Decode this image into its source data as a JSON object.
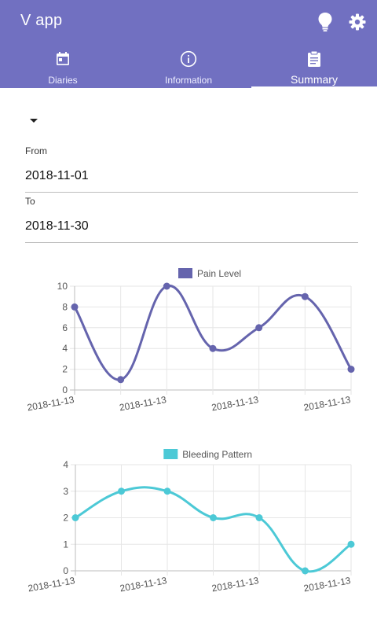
{
  "app": {
    "title": "V app"
  },
  "icons": {
    "bulb": "lightbulb-icon",
    "settings": "gear-icon"
  },
  "tabs": [
    {
      "label": "Diaries",
      "icon": "calendar-icon",
      "active": false
    },
    {
      "label": "Information",
      "icon": "info-icon",
      "active": false
    },
    {
      "label": "Summary",
      "icon": "clipboard-icon",
      "active": true
    }
  ],
  "filter": {
    "from_label": "From",
    "from_value": "2018-11-01",
    "to_label": "To",
    "to_value": "2018-11-30"
  },
  "colors": {
    "primary": "#7170c1",
    "pain": "#6564ad",
    "bleeding": "#4cc9d6"
  },
  "chart_data": [
    {
      "type": "line",
      "categories": [
        "2018-11-13",
        "",
        "2018-11-13",
        "",
        "2018-11-13",
        "",
        "2018-11-13"
      ],
      "series": [
        {
          "name": "Pain Level",
          "values": [
            8,
            1,
            10,
            4,
            6,
            9,
            2
          ]
        }
      ],
      "ylim": [
        0,
        10
      ],
      "yticks": [
        0,
        2,
        4,
        6,
        8,
        10
      ],
      "legend": "top",
      "grid": true,
      "smooth": true
    },
    {
      "type": "line",
      "categories": [
        "2018-11-13",
        "",
        "2018-11-13",
        "",
        "2018-11-13",
        "",
        "2018-11-13"
      ],
      "series": [
        {
          "name": "Bleeding Pattern",
          "values": [
            2,
            3,
            3,
            2,
            2,
            0,
            1
          ]
        }
      ],
      "ylim": [
        0,
        4
      ],
      "yticks": [
        0,
        1,
        2,
        3,
        4
      ],
      "legend": "top",
      "grid": true,
      "smooth": true
    }
  ]
}
